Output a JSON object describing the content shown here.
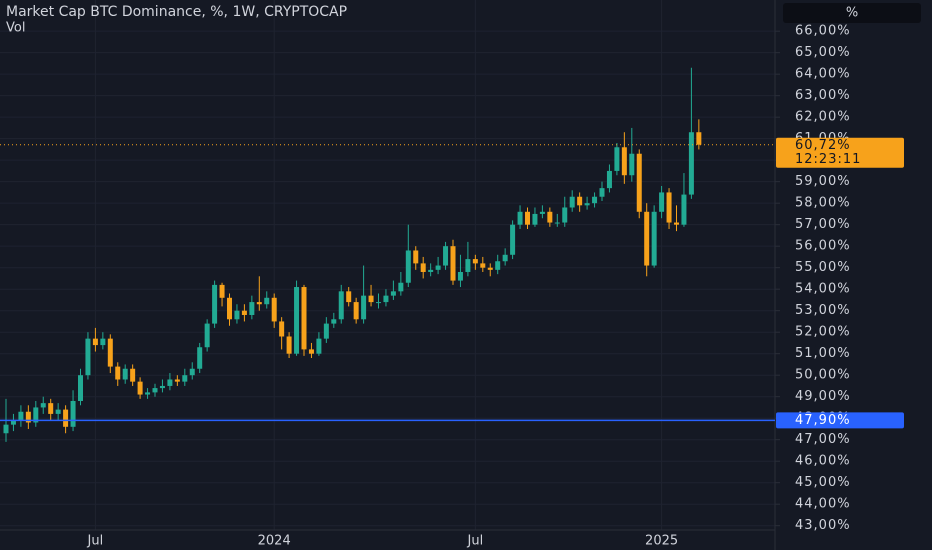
{
  "chart_data": {
    "type": "candlestick",
    "title": "Market Cap BTC Dominance, %, 1W, CRYPTOCAP",
    "subtitle": "Vol",
    "unit_button": "%",
    "categories": [
      null,
      null,
      null,
      null,
      null,
      null,
      null,
      null,
      null,
      null,
      null,
      null,
      "Jul",
      null,
      null,
      null,
      null,
      null,
      null,
      null,
      null,
      null,
      null,
      null,
      null,
      null,
      null,
      null,
      null,
      null,
      null,
      null,
      null,
      null,
      null,
      null,
      "2024",
      null,
      null,
      null,
      null,
      null,
      null,
      null,
      null,
      null,
      null,
      null,
      null,
      null,
      null,
      null,
      null,
      null,
      null,
      null,
      null,
      null,
      null,
      null,
      null,
      null,
      null,
      "Jul",
      null,
      null,
      null,
      null,
      null,
      null,
      null,
      null,
      null,
      null,
      null,
      null,
      null,
      null,
      null,
      null,
      null,
      null,
      null,
      null,
      null,
      null,
      null,
      null,
      "2025",
      null,
      null,
      null,
      null,
      null
    ],
    "open": [
      47.3,
      47.7,
      47.9,
      48.3,
      47.8,
      48.5,
      48.7,
      48.2,
      48.4,
      47.6,
      48.8,
      50.0,
      51.7,
      51.4,
      51.7,
      50.4,
      49.8,
      50.3,
      49.7,
      49.1,
      49.2,
      49.4,
      49.5,
      49.8,
      49.7,
      50.0,
      50.3,
      51.3,
      52.4,
      54.2,
      53.6,
      52.6,
      53.0,
      52.8,
      53.4,
      53.3,
      53.6,
      52.5,
      51.8,
      51.0,
      54.1,
      51.2,
      51.0,
      51.7,
      52.4,
      52.6,
      53.9,
      53.4,
      52.6,
      53.7,
      53.4,
      53.4,
      53.7,
      53.9,
      54.3,
      55.8,
      55.2,
      54.8,
      54.9,
      55.1,
      56.0,
      54.4,
      54.8,
      55.4,
      55.2,
      55.0,
      54.9,
      55.3,
      55.6,
      57.0,
      57.6,
      57.0,
      57.5,
      57.6,
      57.1,
      57.1,
      57.8,
      58.3,
      57.9,
      58.0,
      58.3,
      58.7,
      59.5,
      60.6,
      59.3,
      60.3,
      57.6,
      55.1,
      57.6,
      58.5,
      57.1,
      57.0,
      58.4,
      61.3
    ],
    "high": [
      48.9,
      48.2,
      48.6,
      48.6,
      48.8,
      49.0,
      48.9,
      48.7,
      48.6,
      49.3,
      50.3,
      52.0,
      52.2,
      52.0,
      51.9,
      50.6,
      50.5,
      50.5,
      49.9,
      49.4,
      49.6,
      49.8,
      50.1,
      50.0,
      50.3,
      50.6,
      51.5,
      52.6,
      54.4,
      54.3,
      53.8,
      53.3,
      53.3,
      53.7,
      54.6,
      53.9,
      53.8,
      52.7,
      52.0,
      54.4,
      54.2,
      51.5,
      52.0,
      52.7,
      52.9,
      54.2,
      54.1,
      53.6,
      55.1,
      54.2,
      53.8,
      54.0,
      54.4,
      54.8,
      57.0,
      56.0,
      55.5,
      55.2,
      55.5,
      56.2,
      56.3,
      55.6,
      56.2,
      55.6,
      55.5,
      55.2,
      55.6,
      55.9,
      57.2,
      57.9,
      57.8,
      57.8,
      57.9,
      57.8,
      57.5,
      58.3,
      58.6,
      58.5,
      58.3,
      58.5,
      59.0,
      59.8,
      60.8,
      61.3,
      61.5,
      60.5,
      58.0,
      57.9,
      58.8,
      58.7,
      57.9,
      59.4,
      64.3,
      61.9
    ],
    "low": [
      46.9,
      47.4,
      47.6,
      47.5,
      47.6,
      48.2,
      47.9,
      47.9,
      47.3,
      47.4,
      48.6,
      49.8,
      51.1,
      51.2,
      50.1,
      49.5,
      49.6,
      49.5,
      48.9,
      48.9,
      49.0,
      49.2,
      49.3,
      49.5,
      49.5,
      49.8,
      50.1,
      51.1,
      52.2,
      53.2,
      52.3,
      52.4,
      52.5,
      52.6,
      53.0,
      53.1,
      52.2,
      51.2,
      50.8,
      50.9,
      50.9,
      50.8,
      50.9,
      51.5,
      52.2,
      52.4,
      53.2,
      52.4,
      52.4,
      53.2,
      53.1,
      53.2,
      53.5,
      53.7,
      54.1,
      54.9,
      54.5,
      54.6,
      54.7,
      54.9,
      54.2,
      54.1,
      54.6,
      54.9,
      54.8,
      54.6,
      54.7,
      55.1,
      55.4,
      56.8,
      56.8,
      56.9,
      57.3,
      56.9,
      56.9,
      56.9,
      57.6,
      57.6,
      57.7,
      57.8,
      58.1,
      58.5,
      59.3,
      58.9,
      59.0,
      57.3,
      54.6,
      55.0,
      57.3,
      56.8,
      56.7,
      56.9,
      58.2,
      60.5
    ],
    "close": [
      47.7,
      47.9,
      48.3,
      47.8,
      48.5,
      48.7,
      48.2,
      48.4,
      47.6,
      48.8,
      50.0,
      51.7,
      51.4,
      51.7,
      50.4,
      49.8,
      50.3,
      49.7,
      49.1,
      49.2,
      49.4,
      49.5,
      49.8,
      49.7,
      50.0,
      50.3,
      51.3,
      52.4,
      54.2,
      53.6,
      52.6,
      53.0,
      52.8,
      53.4,
      53.3,
      53.6,
      52.5,
      51.8,
      51.0,
      54.1,
      51.2,
      51.0,
      51.7,
      52.4,
      52.6,
      53.9,
      53.4,
      52.6,
      53.7,
      53.4,
      53.4,
      53.7,
      53.9,
      54.3,
      55.8,
      55.2,
      54.8,
      54.9,
      55.1,
      56.0,
      54.4,
      54.8,
      55.4,
      55.2,
      55.0,
      54.9,
      55.3,
      55.6,
      57.0,
      57.6,
      57.0,
      57.5,
      57.6,
      57.1,
      57.1,
      57.8,
      58.3,
      57.9,
      58.0,
      58.3,
      58.7,
      59.5,
      60.6,
      59.3,
      60.3,
      57.6,
      55.1,
      57.6,
      58.5,
      57.1,
      57.0,
      58.4,
      61.3,
      60.72
    ],
    "up_color": "#22ab94",
    "down_color": "#f7a21b",
    "last_label": "60,72%",
    "countdown": "12:23:11",
    "hline": {
      "value": 47.9,
      "label": "47,90%",
      "color": "#2962ff"
    },
    "ylim": [
      42.8,
      67.45
    ],
    "yticks": [
      {
        "value": 66,
        "label": "66,00%"
      },
      {
        "value": 65,
        "label": "65,00%"
      },
      {
        "value": 64,
        "label": "64,00%"
      },
      {
        "value": 63,
        "label": "63,00%"
      },
      {
        "value": 62,
        "label": "62,00%"
      },
      {
        "value": 61,
        "label": "61,00%"
      },
      {
        "value": 60,
        "label": "60,00%"
      },
      {
        "value": 59,
        "label": "59,00%"
      },
      {
        "value": 58,
        "label": "58,00%"
      },
      {
        "value": 57,
        "label": "57,00%"
      },
      {
        "value": 56,
        "label": "56,00%"
      },
      {
        "value": 55,
        "label": "55,00%"
      },
      {
        "value": 54,
        "label": "54,00%"
      },
      {
        "value": 53,
        "label": "53,00%"
      },
      {
        "value": 52,
        "label": "52,00%"
      },
      {
        "value": 51,
        "label": "51,00%"
      },
      {
        "value": 50,
        "label": "50,00%"
      },
      {
        "value": 49,
        "label": "49,00%"
      },
      {
        "value": 48,
        "label": "48,00%"
      },
      {
        "value": 47,
        "label": "47,00%"
      },
      {
        "value": 46,
        "label": "46,00%"
      },
      {
        "value": 45,
        "label": "45,00%"
      },
      {
        "value": 44,
        "label": "44,00%"
      },
      {
        "value": 43,
        "label": "43,00%"
      }
    ],
    "grid": true
  }
}
